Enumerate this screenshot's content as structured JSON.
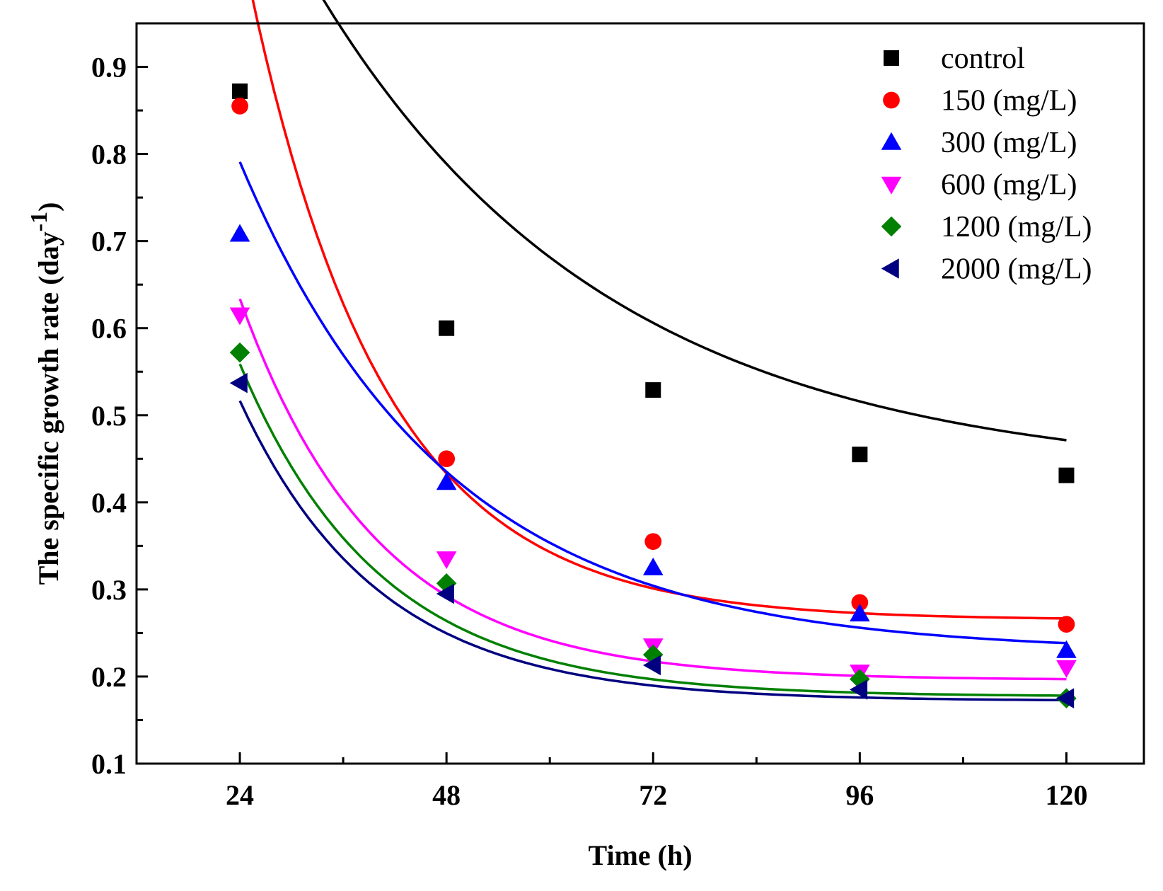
{
  "chart_data": {
    "type": "scatter",
    "xlabel": "Time (h)",
    "ylabel": "The specific growth rate (day",
    "ylabel_sup": "-1",
    "ylabel_close": ")",
    "xlim": [
      12,
      129
    ],
    "ylim": [
      0.1,
      0.95
    ],
    "x_ticks": [
      24,
      48,
      72,
      96,
      120
    ],
    "x_minor_ticks": [
      12,
      36,
      60,
      84,
      108
    ],
    "y_ticks": [
      0.1,
      0.2,
      0.3,
      0.4,
      0.5,
      0.6,
      0.7,
      0.8,
      0.9
    ],
    "x_tick_labels": [
      "24",
      "48",
      "72",
      "96",
      "120"
    ],
    "y_tick_labels": [
      "0.1",
      "0.2",
      "0.3",
      "0.4",
      "0.5",
      "0.6",
      "0.7",
      "0.8",
      "0.9"
    ],
    "legend_position": "top-right",
    "grid": false,
    "x": [
      24,
      48,
      72,
      96,
      120
    ],
    "series": [
      {
        "name": "control",
        "marker": "square",
        "color": "#000000",
        "values": [
          0.872,
          0.6,
          0.529,
          0.455,
          0.431
        ],
        "fit": {
          "y0": 0.428,
          "A": 1.48,
          "t": 34
        }
      },
      {
        "name": "150 (mg/L)",
        "marker": "circle",
        "color": "#ff0000",
        "values": [
          0.855,
          0.45,
          0.355,
          0.285,
          0.26
        ],
        "fit": {
          "y0": 0.265,
          "A": 3.65,
          "t": 15.6
        }
      },
      {
        "name": "300 (mg/L)",
        "marker": "triangle-up",
        "color": "#0000ff",
        "values": [
          0.708,
          0.423,
          0.325,
          0.272,
          0.23
        ],
        "fit": {
          "y0": 0.228,
          "A": 1.53,
          "t": 24
        }
      },
      {
        "name": "600 (mg/L)",
        "marker": "triangle-down",
        "color": "#ff00ff",
        "values": [
          0.615,
          0.335,
          0.235,
          0.205,
          0.21
        ],
        "fit": {
          "y0": 0.196,
          "A": 1.98,
          "t": 15.9
        }
      },
      {
        "name": "1200 (mg/L)",
        "marker": "diamond",
        "color": "#008000",
        "values": [
          0.572,
          0.307,
          0.225,
          0.197,
          0.175
        ],
        "fit": {
          "y0": 0.177,
          "A": 1.68,
          "t": 16.2
        }
      },
      {
        "name": "2000 (mg/L)",
        "marker": "triangle-left",
        "color": "#000080",
        "values": [
          0.537,
          0.295,
          0.213,
          0.185,
          0.175
        ],
        "fit": {
          "y0": 0.172,
          "A": 1.53,
          "t": 16.1
        }
      }
    ]
  }
}
